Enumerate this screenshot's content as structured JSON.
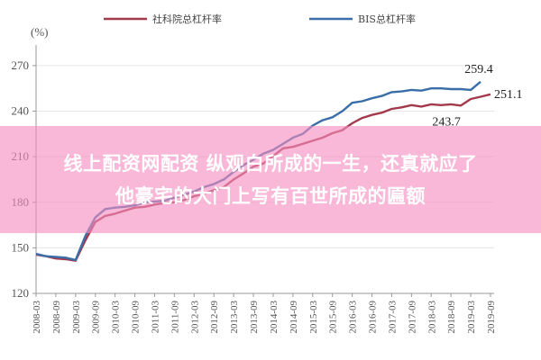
{
  "banner": {
    "line1": "线上配资网配资 纵观白所成的一生，还真就应了",
    "line2": "他豪宅的大门上写有百世所成的匾额"
  },
  "chart_data": {
    "type": "line",
    "ylabel": "(%)",
    "ylim": [
      120,
      280
    ],
    "yticks": [
      120,
      150,
      180,
      210,
      240,
      270
    ],
    "x": [
      "2008-03",
      "2008-06",
      "2008-09",
      "2008-12",
      "2009-03",
      "2009-06",
      "2009-09",
      "2009-12",
      "2010-03",
      "2010-06",
      "2010-09",
      "2010-12",
      "2011-03",
      "2011-06",
      "2011-09",
      "2011-12",
      "2012-03",
      "2012-06",
      "2012-09",
      "2012-12",
      "2013-03",
      "2013-06",
      "2013-09",
      "2013-12",
      "2014-03",
      "2014-06",
      "2014-09",
      "2014-12",
      "2015-03",
      "2015-06",
      "2015-09",
      "2015-12",
      "2016-03",
      "2016-06",
      "2016-09",
      "2016-12",
      "2017-03",
      "2017-06",
      "2017-09",
      "2017-12",
      "2018-03",
      "2018-06",
      "2018-09",
      "2018-12",
      "2019-03",
      "2019-06",
      "2019-09"
    ],
    "xtick_labels": [
      "2008-03",
      "2008-09",
      "2009-03",
      "2009-09",
      "2010-03",
      "2010-09",
      "2011-03",
      "2011-09",
      "2012-03",
      "2012-09",
      "2013-03",
      "2013-09",
      "2014-03",
      "2014-09",
      "2015-03",
      "2015-09",
      "2016-03",
      "2016-09",
      "2017-03",
      "2017-09",
      "2018-03",
      "2018-09",
      "2019-03",
      "2019-09"
    ],
    "series": [
      {
        "name": "社科院总杠杆率",
        "color": "#a33a4c",
        "values": [
          145.5,
          144.5,
          143.0,
          142.5,
          141.5,
          155.0,
          167.0,
          171.0,
          172.5,
          174.5,
          176.5,
          177.0,
          178.5,
          179.5,
          180.0,
          181.5,
          184.0,
          185.5,
          188.0,
          190.0,
          195.0,
          199.0,
          203.5,
          205.5,
          210.5,
          215.5,
          216.5,
          218.5,
          220.5,
          222.5,
          225.5,
          227.5,
          232.0,
          235.5,
          237.5,
          239.0,
          241.5,
          242.5,
          244.0,
          243.0,
          244.5,
          244.0,
          244.5,
          243.7,
          248.0,
          249.5,
          251.1
        ]
      },
      {
        "name": "BIS总杠杆率",
        "color": "#3a6ea8",
        "values": [
          146.0,
          144.5,
          144.0,
          143.5,
          142.0,
          158.0,
          170.0,
          175.5,
          176.5,
          177.0,
          178.0,
          180.0,
          180.5,
          181.0,
          183.0,
          185.0,
          187.0,
          190.0,
          192.0,
          195.0,
          200.0,
          204.5,
          208.0,
          212.0,
          214.5,
          218.5,
          222.5,
          225.0,
          230.5,
          234.0,
          236.0,
          240.0,
          245.5,
          246.5,
          248.5,
          250.0,
          252.5,
          253.0,
          254.0,
          253.5,
          255.0,
          255.0,
          254.5,
          254.5,
          254.0,
          259.4,
          null
        ]
      }
    ],
    "annotations": [
      {
        "text": "259.4",
        "series": 1,
        "index": 45
      },
      {
        "text": "251.1",
        "series": 0,
        "index": 46
      },
      {
        "text": "243.7",
        "series": 0,
        "index": 43
      }
    ],
    "legend_position": "top"
  }
}
